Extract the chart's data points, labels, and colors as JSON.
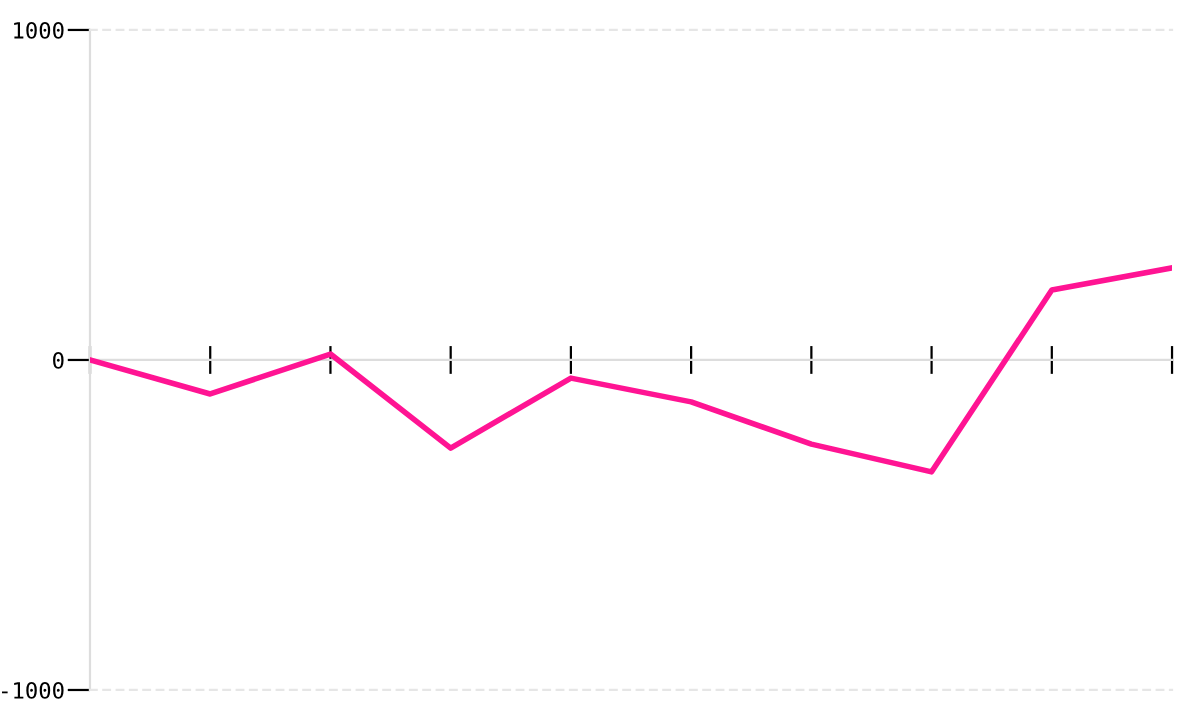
{
  "chart_data": {
    "type": "line",
    "series": [
      {
        "color": "#ff1493",
        "values": [
          0,
          -103,
          18,
          -267,
          -55,
          -127,
          -255,
          -339,
          212,
          279
        ]
      }
    ],
    "categories": [
      null,
      null,
      null,
      null,
      null,
      null,
      null,
      null,
      null,
      null
    ],
    "ylim": [
      -1000,
      1000
    ],
    "yticks": [
      -1000,
      0,
      1000
    ],
    "tick_labels": "y",
    "line_style": "solid",
    "marker": "none"
  }
}
